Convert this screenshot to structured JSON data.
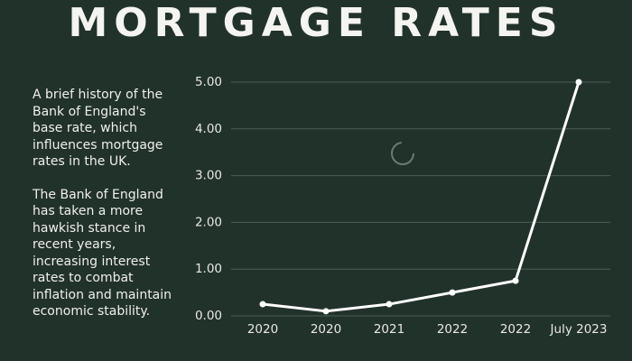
{
  "title": "MORTGAGE RATES",
  "paragraphs": [
    "A brief history of the Bank of England's base rate, which influences mortgage rates in the UK.",
    "The Bank of England has taken a more hawkish stance in recent years, increasing interest rates to combat inflation and maintain economic stability."
  ],
  "chart_data": {
    "type": "line",
    "categories": [
      "2020",
      "2020",
      "2021",
      "2022",
      "2022",
      "July 2023"
    ],
    "values": [
      0.25,
      0.1,
      0.25,
      0.5,
      0.75,
      5.0
    ],
    "color": "#ffffff",
    "ylim": [
      0,
      5
    ],
    "yticks": [
      {
        "value": 0,
        "label": "0.00"
      },
      {
        "value": 1,
        "label": "1.00"
      },
      {
        "value": 2,
        "label": "2.00"
      },
      {
        "value": 3,
        "label": "3.00"
      },
      {
        "value": 4,
        "label": "4.00"
      },
      {
        "value": 5,
        "label": "5.00"
      }
    ],
    "grid": true
  }
}
